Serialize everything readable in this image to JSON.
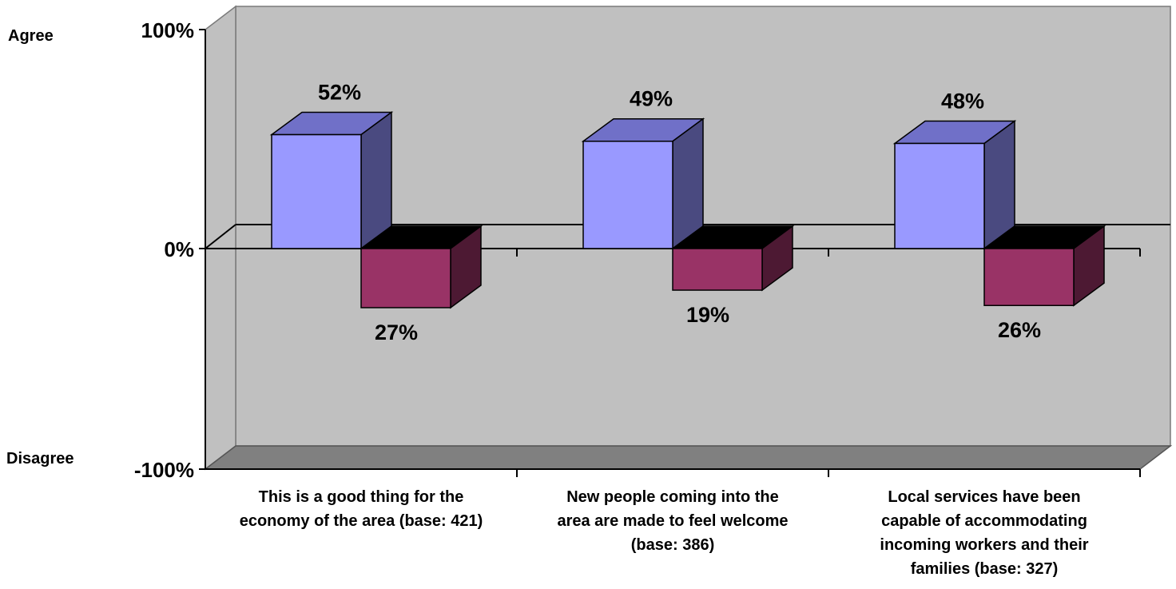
{
  "chart_data": {
    "type": "bar",
    "three_d": true,
    "side_labels": {
      "top": "Agree",
      "bottom": "Disagree"
    },
    "y_ticks": [
      "100%",
      "0%",
      "-100%"
    ],
    "ylim": [
      -100,
      100
    ],
    "categories": [
      [
        "This is a good thing for the",
        "economy of the area (base: 421)"
      ],
      [
        "New people coming into the",
        "area are made to feel welcome",
        "(base: 386)"
      ],
      [
        "Local services have been",
        "capable of accommodating",
        "incoming workers and their",
        "families (base: 327)"
      ]
    ],
    "series": [
      {
        "values": [
          52,
          49,
          48
        ],
        "labels": [
          "52%",
          "49%",
          "48%"
        ],
        "color": "#9999ff"
      },
      {
        "values": [
          -27,
          -19,
          -26
        ],
        "labels": [
          "27%",
          "19%",
          "26%"
        ],
        "color": "#993366"
      }
    ],
    "colors": {
      "back_wall": "#c0c0c0",
      "side_wall": "#c0c0c0",
      "floor": "#808080",
      "agree_top": "#7070c8",
      "agree_side": "#4a4a80",
      "disagree_top": "#000000",
      "disagree_side": "#4d1933"
    }
  }
}
